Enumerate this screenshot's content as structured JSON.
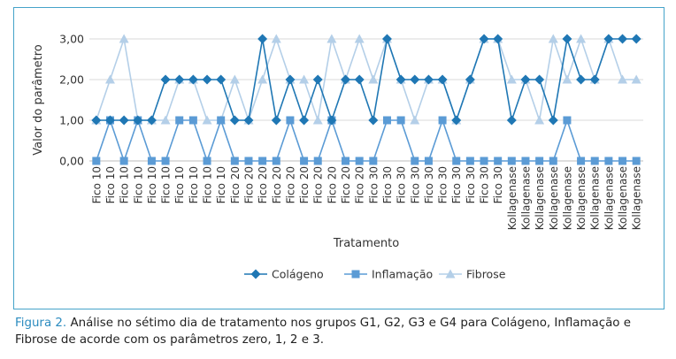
{
  "chart_data": {
    "type": "line",
    "ylabel": "Valor do parâmetro",
    "xlabel": "Tratamento",
    "ylim": [
      0,
      3
    ],
    "y_ticks": [
      "0,00",
      "1,00",
      "2,00",
      "3,00"
    ],
    "grid": "horizontal",
    "legend_position": "bottom",
    "categories": [
      "Fico 10",
      "Fico 10",
      "Fico 10",
      "Fico 10",
      "Fico 10",
      "Fico 10",
      "Fico 10",
      "Fico 10",
      "Fico 10",
      "Fico 10",
      "Fico 20",
      "Fico 20",
      "Fico 20",
      "Fico 20",
      "Fico 20",
      "Fico 20",
      "Fico 20",
      "Fico 20",
      "Fico 20",
      "Fico 20",
      "Fico 30",
      "Fico 30",
      "Fico 30",
      "Fico 30",
      "Fico 30",
      "Fico 30",
      "Fico 30",
      "Fico 30",
      "Fico 30",
      "Fico 30",
      "Kollagenase",
      "Kollagenase",
      "Kollagenase",
      "Kollagenase",
      "Kollagenase",
      "Kollagenase",
      "Kollagenase",
      "Kollagenase",
      "Kollagenase",
      "Kollagenase"
    ],
    "series": [
      {
        "name": "Colágeno",
        "color": "#1f77b4",
        "marker": "diamond",
        "values": [
          1,
          1,
          1,
          1,
          1,
          2,
          2,
          2,
          2,
          2,
          1,
          1,
          3,
          1,
          2,
          1,
          2,
          1,
          2,
          2,
          1,
          3,
          2,
          2,
          2,
          2,
          1,
          2,
          3,
          3,
          1,
          2,
          2,
          1,
          3,
          2,
          2,
          3,
          3,
          3
        ]
      },
      {
        "name": "Inflamação",
        "color": "#5b9bd5",
        "marker": "square",
        "values": [
          0,
          1,
          0,
          1,
          0,
          0,
          1,
          1,
          0,
          1,
          0,
          0,
          0,
          0,
          1,
          0,
          0,
          1,
          0,
          0,
          0,
          1,
          1,
          0,
          0,
          1,
          0,
          0,
          0,
          0,
          0,
          0,
          0,
          0,
          1,
          0,
          0,
          0,
          0,
          0
        ]
      },
      {
        "name": "Fibrose",
        "color": "#b4cfe8",
        "marker": "triangle",
        "values": [
          1,
          2,
          3,
          1,
          1,
          1,
          2,
          2,
          1,
          1,
          2,
          1,
          2,
          3,
          2,
          2,
          1,
          3,
          2,
          3,
          2,
          3,
          2,
          1,
          2,
          2,
          1,
          2,
          3,
          3,
          2,
          2,
          1,
          3,
          2,
          3,
          2,
          3,
          2,
          2
        ]
      }
    ]
  },
  "caption": {
    "label": "Figura 2.",
    "text": " Análise no sétimo dia de tratamento nos grupos G1, G2, G3 e G4 para Colágeno, Inflamação e Fibrose de acorde com os parâmetros zero, 1, 2 e 3."
  }
}
